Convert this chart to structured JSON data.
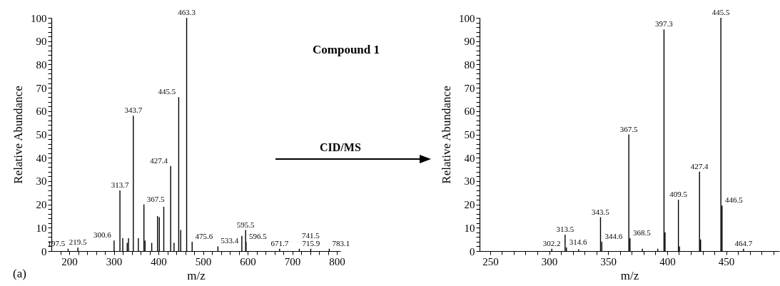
{
  "chart_data": [
    {
      "type": "bar",
      "xlabel": "m/z",
      "ylabel": "Relative Abundance",
      "color": "#000000",
      "grid": false,
      "annotations": [
        "(a)",
        "Compound 1",
        "CID/MS",
        {
          "text": "197.5",
          "x": 197.5,
          "y": 1
        },
        {
          "text": "219.5",
          "x": 219.5,
          "y": 1.5
        },
        {
          "text": "300.6",
          "x": 300.6,
          "y": 4.5
        },
        {
          "text": "313.7",
          "x": 313.7,
          "y": 26
        },
        {
          "text": "343.7",
          "x": 343.7,
          "y": 58
        },
        {
          "text": "367.5",
          "x": 367.5,
          "y": 20
        },
        {
          "text": "427.4",
          "x": 427.4,
          "y": 36.5
        },
        {
          "text": "445.5",
          "x": 445.5,
          "y": 66
        },
        {
          "text": "463.3",
          "x": 463.3,
          "y": 100
        },
        {
          "text": "475.6",
          "x": 475.6,
          "y": 4
        },
        {
          "text": "533.4",
          "x": 533.4,
          "y": 2
        },
        {
          "text": "595.5",
          "x": 595.5,
          "y": 9
        },
        {
          "text": "596.5",
          "x": 596.5,
          "y": 4
        },
        {
          "text": "671.7",
          "x": 671.7,
          "y": 1
        },
        {
          "text": "715.9",
          "x": 715.9,
          "y": 1
        },
        {
          "text": "741.5",
          "x": 741.5,
          "y": 1
        },
        {
          "text": "783.1",
          "x": 783.1,
          "y": 1
        }
      ],
      "x": [
        197.5,
        219.5,
        300.6,
        313.7,
        320,
        330,
        333,
        343.7,
        355,
        367.5,
        370,
        385,
        398,
        402,
        412,
        427.4,
        435,
        445.5,
        450,
        463.3,
        475.6,
        533.4,
        587,
        595.5,
        596.5,
        671.7,
        715.9,
        741.5,
        783.1
      ],
      "values": [
        1,
        1.5,
        4.5,
        26,
        5.5,
        3.5,
        5.5,
        58,
        5.5,
        20,
        4.5,
        3.5,
        15,
        14.5,
        19,
        36.5,
        3.5,
        66,
        9,
        100,
        4,
        2,
        6.5,
        9,
        4,
        1,
        1,
        1,
        1
      ],
      "xlim": [
        160,
        808
      ],
      "xticks": [
        {
          "value": 180,
          "label": null
        },
        200,
        {
          "value": 220,
          "label": null
        },
        {
          "value": 240,
          "label": null
        },
        {
          "value": 260,
          "label": null
        },
        {
          "value": 280,
          "label": null
        },
        300,
        {
          "value": 320,
          "label": null
        },
        {
          "value": 340,
          "label": null
        },
        {
          "value": 360,
          "label": null
        },
        {
          "value": 380,
          "label": null
        },
        400,
        {
          "value": 420,
          "label": null
        },
        {
          "value": 440,
          "label": null
        },
        {
          "value": 460,
          "label": null
        },
        {
          "value": 480,
          "label": null
        },
        500,
        {
          "value": 520,
          "label": null
        },
        {
          "value": 540,
          "label": null
        },
        {
          "value": 560,
          "label": null
        },
        {
          "value": 580,
          "label": null
        },
        600,
        {
          "value": 620,
          "label": null
        },
        {
          "value": 640,
          "label": null
        },
        {
          "value": 660,
          "label": null
        },
        {
          "value": 680,
          "label": null
        },
        700,
        {
          "value": 720,
          "label": null
        },
        {
          "value": 740,
          "label": null
        },
        {
          "value": 760,
          "label": null
        },
        {
          "value": 780,
          "label": null
        },
        800
      ],
      "ylim": [
        0,
        100
      ],
      "yticks": [
        0,
        {
          "value": 2,
          "label": null
        },
        {
          "value": 4,
          "label": null
        },
        {
          "value": 6,
          "label": null
        },
        {
          "value": 8,
          "label": null
        },
        10,
        {
          "value": 12,
          "label": null
        },
        {
          "value": 14,
          "label": null
        },
        {
          "value": 16,
          "label": null
        },
        {
          "value": 18,
          "label": null
        },
        20,
        {
          "value": 22,
          "label": null
        },
        {
          "value": 24,
          "label": null
        },
        {
          "value": 26,
          "label": null
        },
        {
          "value": 28,
          "label": null
        },
        30,
        {
          "value": 32,
          "label": null
        },
        {
          "value": 34,
          "label": null
        },
        {
          "value": 36,
          "label": null
        },
        {
          "value": 38,
          "label": null
        },
        40,
        {
          "value": 42,
          "label": null
        },
        {
          "value": 44,
          "label": null
        },
        {
          "value": 46,
          "label": null
        },
        {
          "value": 48,
          "label": null
        },
        50,
        {
          "value": 52,
          "label": null
        },
        {
          "value": 54,
          "label": null
        },
        {
          "value": 56,
          "label": null
        },
        {
          "value": 58,
          "label": null
        },
        60,
        {
          "value": 62,
          "label": null
        },
        {
          "value": 64,
          "label": null
        },
        {
          "value": 66,
          "label": null
        },
        {
          "value": 68,
          "label": null
        },
        70,
        {
          "value": 72,
          "label": null
        },
        {
          "value": 74,
          "label": null
        },
        {
          "value": 76,
          "label": null
        },
        {
          "value": 78,
          "label": null
        },
        80,
        {
          "value": 82,
          "label": null
        },
        {
          "value": 84,
          "label": null
        },
        {
          "value": 86,
          "label": null
        },
        {
          "value": 88,
          "label": null
        },
        90,
        {
          "value": 92,
          "label": null
        },
        {
          "value": 94,
          "label": null
        },
        {
          "value": 96,
          "label": null
        },
        {
          "value": 98,
          "label": null
        },
        100
      ]
    },
    {
      "type": "bar",
      "xlabel": "m/z",
      "ylabel": "Relative Abundance",
      "color": "#000000",
      "grid": false,
      "annotations": [
        {
          "text": "302.2",
          "x": 302.2,
          "y": 1
        },
        {
          "text": "313.5",
          "x": 313.5,
          "y": 7
        },
        {
          "text": "314.6",
          "x": 314.6,
          "y": 1.5
        },
        {
          "text": "343.5",
          "x": 343.5,
          "y": 14.5
        },
        {
          "text": "344.6",
          "x": 344.6,
          "y": 4
        },
        {
          "text": "367.5",
          "x": 367.5,
          "y": 50
        },
        {
          "text": "368.5",
          "x": 368.5,
          "y": 5.5
        },
        {
          "text": "397.3",
          "x": 397.3,
          "y": 95
        },
        {
          "text": "409.5",
          "x": 409.5,
          "y": 22
        },
        {
          "text": "427.4",
          "x": 427.4,
          "y": 34
        },
        {
          "text": "445.5",
          "x": 445.5,
          "y": 100
        },
        {
          "text": "446.5",
          "x": 446.5,
          "y": 19.5
        },
        {
          "text": "464.7",
          "x": 464.7,
          "y": 1
        }
      ],
      "x": [
        302.2,
        313.5,
        314.6,
        325,
        343.5,
        344.6,
        367.5,
        368.5,
        379,
        392,
        397.3,
        398.2,
        409.5,
        410.4,
        427.4,
        428.3,
        445.5,
        446.5,
        464.7
      ],
      "values": [
        1,
        7,
        1.5,
        0.8,
        14.5,
        4,
        50,
        5.5,
        1,
        1,
        95,
        8,
        22,
        2,
        34,
        5,
        100,
        19.5,
        1
      ],
      "xlim": [
        241,
        495
      ],
      "xticks": [
        250,
        {
          "value": 260,
          "label": null
        },
        {
          "value": 270,
          "label": null
        },
        {
          "value": 280,
          "label": null
        },
        {
          "value": 290,
          "label": null
        },
        300,
        {
          "value": 310,
          "label": null
        },
        {
          "value": 320,
          "label": null
        },
        {
          "value": 330,
          "label": null
        },
        {
          "value": 340,
          "label": null
        },
        350,
        {
          "value": 360,
          "label": null
        },
        {
          "value": 370,
          "label": null
        },
        {
          "value": 380,
          "label": null
        },
        {
          "value": 390,
          "label": null
        },
        400,
        {
          "value": 410,
          "label": null
        },
        {
          "value": 420,
          "label": null
        },
        {
          "value": 430,
          "label": null
        },
        {
          "value": 440,
          "label": null
        },
        450,
        {
          "value": 460,
          "label": null
        },
        {
          "value": 470,
          "label": null
        },
        {
          "value": 480,
          "label": null
        },
        {
          "value": 490,
          "label": null
        }
      ],
      "ylim": [
        0,
        100
      ],
      "yticks": [
        0,
        {
          "value": 2,
          "label": null
        },
        {
          "value": 4,
          "label": null
        },
        {
          "value": 6,
          "label": null
        },
        {
          "value": 8,
          "label": null
        },
        10,
        {
          "value": 12,
          "label": null
        },
        {
          "value": 14,
          "label": null
        },
        {
          "value": 16,
          "label": null
        },
        {
          "value": 18,
          "label": null
        },
        20,
        {
          "value": 22,
          "label": null
        },
        {
          "value": 24,
          "label": null
        },
        {
          "value": 26,
          "label": null
        },
        {
          "value": 28,
          "label": null
        },
        30,
        {
          "value": 32,
          "label": null
        },
        {
          "value": 34,
          "label": null
        },
        {
          "value": 36,
          "label": null
        },
        {
          "value": 38,
          "label": null
        },
        40,
        {
          "value": 42,
          "label": null
        },
        {
          "value": 44,
          "label": null
        },
        {
          "value": 46,
          "label": null
        },
        {
          "value": 48,
          "label": null
        },
        50,
        {
          "value": 52,
          "label": null
        },
        {
          "value": 54,
          "label": null
        },
        {
          "value": 56,
          "label": null
        },
        {
          "value": 58,
          "label": null
        },
        60,
        {
          "value": 62,
          "label": null
        },
        {
          "value": 64,
          "label": null
        },
        {
          "value": 66,
          "label": null
        },
        {
          "value": 68,
          "label": null
        },
        70,
        {
          "value": 72,
          "label": null
        },
        {
          "value": 74,
          "label": null
        },
        {
          "value": 76,
          "label": null
        },
        {
          "value": 78,
          "label": null
        },
        80,
        {
          "value": 82,
          "label": null
        },
        {
          "value": 84,
          "label": null
        },
        {
          "value": 86,
          "label": null
        },
        {
          "value": 88,
          "label": null
        },
        90,
        {
          "value": 92,
          "label": null
        },
        {
          "value": 94,
          "label": null
        },
        {
          "value": 96,
          "label": null
        },
        {
          "value": 98,
          "label": null
        },
        100
      ]
    }
  ]
}
